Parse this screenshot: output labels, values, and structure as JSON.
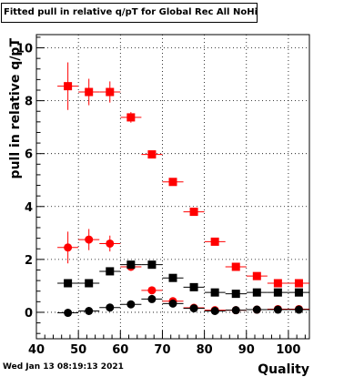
{
  "title": "Fitted pull in relative q/pT for Global Rec All NoHits",
  "footer": {
    "timestamp": "Wed Jan 13 08:19:13 2021"
  },
  "chart_data": {
    "type": "scatter",
    "title": "Fitted pull in relative q/pT for Global Rec All NoHits",
    "xlabel": "Quality",
    "ylabel": "pull in relative q/pT",
    "xlim": [
      40,
      105
    ],
    "ylim": [
      -1,
      10.5
    ],
    "xticks": [
      40,
      50,
      60,
      70,
      80,
      90,
      100
    ],
    "yticks": [
      0,
      2,
      4,
      6,
      8,
      10
    ],
    "grid": true,
    "x_halfwidth": 2.5,
    "series": [
      {
        "marker": "square",
        "color": "#ff0000",
        "x": [
          47.5,
          52.5,
          57.5,
          62.5,
          67.5,
          72.5,
          77.5,
          82.5,
          87.5,
          92.5,
          97.5,
          102.5
        ],
        "y": [
          8.55,
          8.33,
          8.33,
          7.37,
          5.97,
          4.93,
          3.8,
          2.67,
          1.72,
          1.37,
          1.1,
          1.1
        ],
        "yerr": [
          0.9,
          0.5,
          0.4,
          0.2,
          0.1,
          0.08,
          0.07,
          0.06,
          0.05,
          0.05,
          0.05,
          0.05
        ]
      },
      {
        "marker": "circle",
        "color": "#ff0000",
        "x": [
          47.5,
          52.5,
          57.5,
          62.5,
          67.5,
          72.5,
          77.5,
          82.5,
          87.5,
          92.5,
          97.5,
          102.5
        ],
        "y": [
          2.45,
          2.75,
          2.6,
          1.72,
          0.83,
          0.42,
          0.17,
          0.08,
          0.08,
          0.1,
          0.12,
          0.12
        ],
        "yerr": [
          0.6,
          0.4,
          0.3,
          0.15,
          0.1,
          0.08,
          0.06,
          0.05,
          0.04,
          0.04,
          0.04,
          0.04
        ]
      },
      {
        "marker": "square",
        "color": "#000000",
        "x": [
          47.5,
          52.5,
          57.5,
          62.5,
          67.5,
          72.5,
          77.5,
          82.5,
          87.5,
          92.5,
          97.5,
          102.5
        ],
        "y": [
          1.1,
          1.1,
          1.55,
          1.8,
          1.8,
          1.3,
          0.95,
          0.75,
          0.7,
          0.75,
          0.75,
          0.75
        ],
        "yerr": [
          0.1,
          0.08,
          0.08,
          0.06,
          0.05,
          0.05,
          0.04,
          0.04,
          0.04,
          0.04,
          0.04,
          0.04
        ]
      },
      {
        "marker": "circle",
        "color": "#000000",
        "x": [
          47.5,
          52.5,
          57.5,
          62.5,
          67.5,
          72.5,
          77.5,
          82.5,
          87.5,
          92.5,
          97.5,
          102.5
        ],
        "y": [
          -0.02,
          0.05,
          0.18,
          0.3,
          0.5,
          0.33,
          0.15,
          0.05,
          0.08,
          0.1,
          0.1,
          0.1
        ],
        "yerr": [
          0.06,
          0.05,
          0.05,
          0.04,
          0.04,
          0.04,
          0.03,
          0.03,
          0.03,
          0.03,
          0.03,
          0.03
        ]
      }
    ]
  }
}
